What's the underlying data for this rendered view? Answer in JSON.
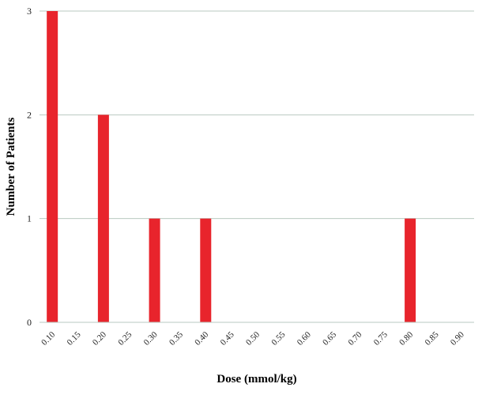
{
  "chart_data": {
    "type": "bar",
    "title": "",
    "xlabel": "Dose (mmol/kg)",
    "ylabel": "Number of Patients",
    "categories": [
      "0.10",
      "0.15",
      "0.20",
      "0.25",
      "0.30",
      "0.35",
      "0.40",
      "0.45",
      "0.50",
      "0.55",
      "0.60",
      "0.65",
      "0.70",
      "0.75",
      "0.80",
      "0.85",
      "0.90"
    ],
    "values": [
      3,
      0,
      2,
      0,
      1,
      0,
      1,
      0,
      0,
      0,
      0,
      0,
      0,
      0,
      1,
      0,
      0
    ],
    "yticks": [
      "0",
      "1",
      "2",
      "3"
    ],
    "ylim": [
      0,
      3
    ],
    "grid": true,
    "bar_color": "#e8242c",
    "grid_color": "#b9c9c0"
  }
}
